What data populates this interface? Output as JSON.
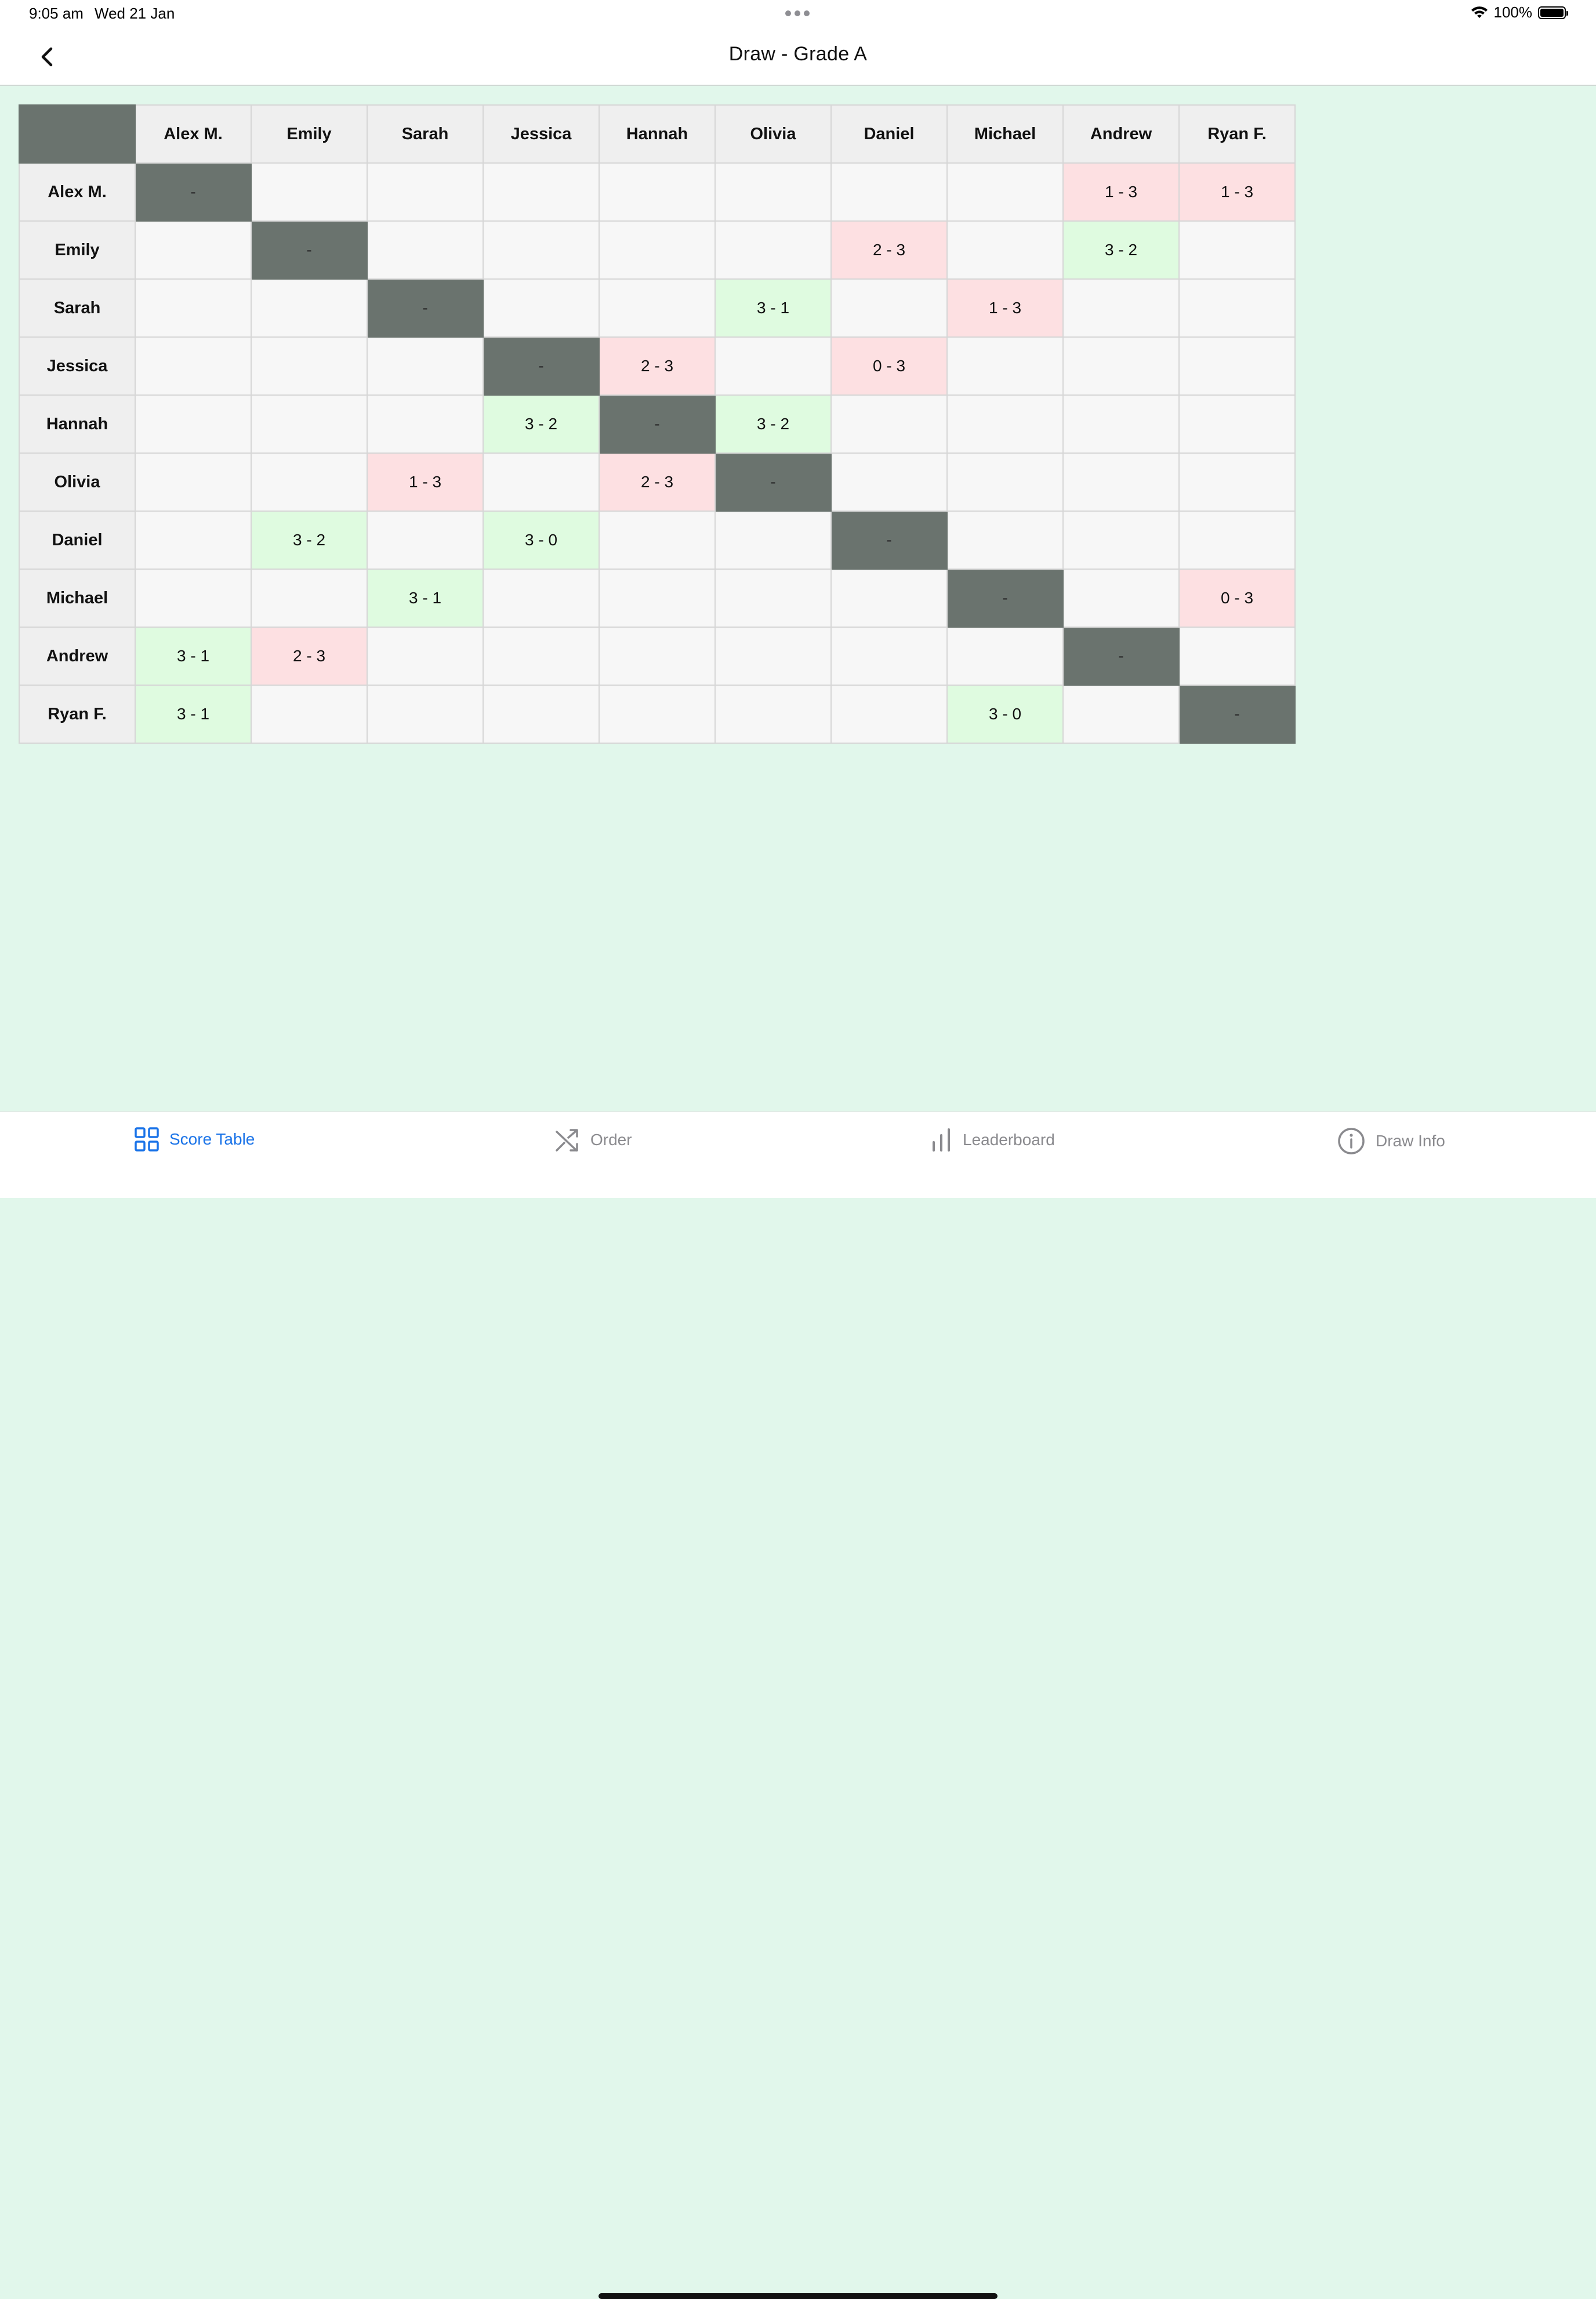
{
  "status": {
    "time": "9:05 am",
    "date": "Wed 21 Jan",
    "battery": "100%"
  },
  "nav": {
    "title": "Draw  -  Grade A"
  },
  "table": {
    "players": [
      "Alex M.",
      "Emily",
      "Sarah",
      "Jessica",
      "Hannah",
      "Olivia",
      "Daniel",
      "Michael",
      "Andrew",
      "Ryan F."
    ],
    "diagonal_mark": "-",
    "rows": [
      [
        "-",
        "",
        "",
        "",
        "",
        "",
        "",
        "",
        "1 - 3",
        "1 - 3"
      ],
      [
        "",
        "-",
        "",
        "",
        "",
        "",
        "2 - 3",
        "",
        "3 - 2",
        ""
      ],
      [
        "",
        "",
        "-",
        "",
        "",
        "3 - 1",
        "",
        "1 - 3",
        "",
        ""
      ],
      [
        "",
        "",
        "",
        "-",
        "2 - 3",
        "",
        "0 - 3",
        "",
        "",
        ""
      ],
      [
        "",
        "",
        "",
        "3 - 2",
        "-",
        "3 - 2",
        "",
        "",
        "",
        ""
      ],
      [
        "",
        "",
        "1 - 3",
        "",
        "2 - 3",
        "-",
        "",
        "",
        "",
        ""
      ],
      [
        "",
        "3 - 2",
        "",
        "3 - 0",
        "",
        "",
        "-",
        "",
        "",
        ""
      ],
      [
        "",
        "",
        "3 - 1",
        "",
        "",
        "",
        "",
        "-",
        "",
        "0 - 3"
      ],
      [
        "3 - 1",
        "2 - 3",
        "",
        "",
        "",
        "",
        "",
        "",
        "-",
        ""
      ],
      [
        "3 - 1",
        "",
        "",
        "",
        "",
        "",
        "",
        "3 - 0",
        "",
        "-"
      ]
    ]
  },
  "colors": {
    "win": "#dffbe0",
    "loss": "#fde0e2",
    "diagonal": "#6a736e",
    "accent": "#1a73e8",
    "background": "#e1f7eb"
  },
  "tabs": [
    {
      "label": "Score Table",
      "icon": "grid-icon",
      "active": true
    },
    {
      "label": "Order",
      "icon": "shuffle-icon",
      "active": false
    },
    {
      "label": "Leaderboard",
      "icon": "bar-chart-icon",
      "active": false
    },
    {
      "label": "Draw Info",
      "icon": "info-icon",
      "active": false
    }
  ]
}
